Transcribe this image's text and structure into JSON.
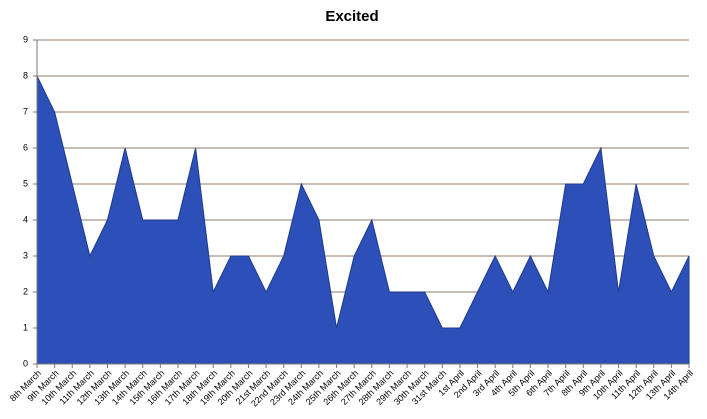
{
  "chart_data": {
    "type": "area",
    "title": "Excited",
    "categories": [
      "8th March",
      "9th March",
      "10th March",
      "11th March",
      "12th March",
      "13th March",
      "14th March",
      "15th March",
      "16th March",
      "17th March",
      "18th March",
      "19th March",
      "20th March",
      "21st March",
      "22nd March",
      "23rd March",
      "24th March",
      "25th March",
      "26th March",
      "27th March",
      "28th March",
      "29th March",
      "30th March",
      "31st March",
      "1st April",
      "2nd April",
      "3rd April",
      "4th April",
      "5th April",
      "6th April",
      "7th April",
      "8th April",
      "9th April",
      "10th April",
      "11th April",
      "12th April",
      "13th April",
      "14th April"
    ],
    "values": [
      8,
      7,
      5,
      3,
      4,
      6,
      4,
      4,
      4,
      6,
      2,
      3,
      3,
      2,
      3,
      5,
      4,
      1,
      3,
      4,
      2,
      2,
      2,
      1,
      1,
      2,
      3,
      2,
      3,
      2,
      5,
      5,
      6,
      2,
      5,
      3,
      2,
      3
    ],
    "color": "#2c50b8",
    "ylim": [
      0,
      9
    ],
    "yticks": [
      0,
      1,
      2,
      3,
      4,
      5,
      6,
      7,
      8,
      9
    ],
    "grid": true
  }
}
